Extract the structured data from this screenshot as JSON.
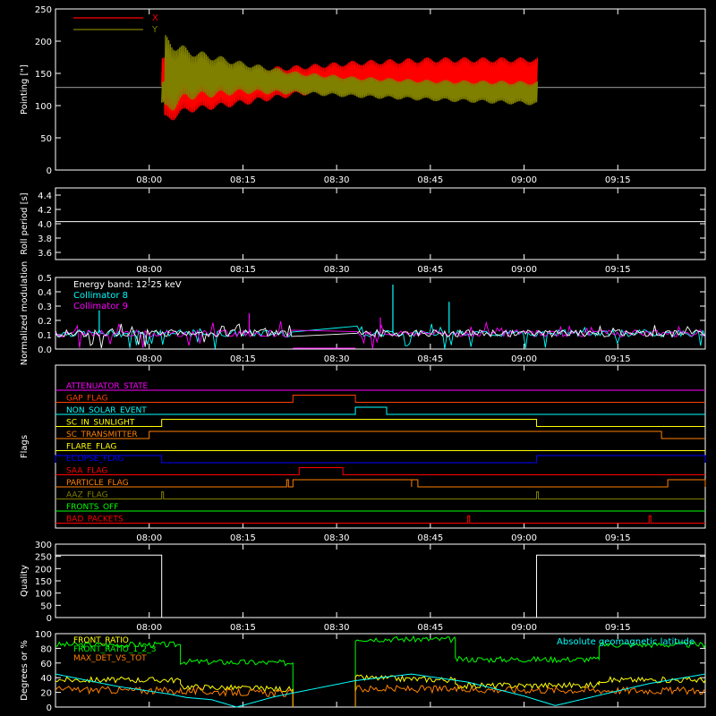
{
  "time_ticks": [
    "08:00",
    "08:15",
    "08:30",
    "08:45",
    "09:00",
    "09:15"
  ],
  "colors": {
    "background": "#000000",
    "axes": "#ffffff",
    "x_pointing": "#ff0000",
    "y_pointing": "#808000",
    "collimator_8": "#00ffff",
    "collimator_9": "#ff00ff",
    "front_ratio": "#ffff00",
    "front_ratio_1_2": "#00ff00",
    "max_det_vs_tot": "#ff8000",
    "abs_geomag_lat": "#00ffff"
  },
  "chart_data": [
    {
      "id": "pointing",
      "type": "line",
      "ylabel": "Pointing [\"]",
      "ylim": [
        0,
        250
      ],
      "yticks": [
        "0",
        "50",
        "100",
        "150",
        "200",
        "250"
      ],
      "series": [
        {
          "name": "X",
          "color": "#ff0000",
          "envelope": [
            [
              8.04,
              70,
              168
            ],
            [
              8.1,
              88,
              150
            ],
            [
              8.25,
              100,
              158
            ],
            [
              8.4,
              115,
              163
            ],
            [
              8.55,
              120,
              170
            ],
            [
              8.75,
              122,
              175
            ],
            [
              9.04,
              125,
              175
            ]
          ]
        },
        {
          "name": "Y",
          "color": "#808000",
          "envelope": [
            [
              8.04,
              82,
              210
            ],
            [
              8.1,
              108,
              190
            ],
            [
              8.25,
              118,
              168
            ],
            [
              8.4,
              117,
              152
            ],
            [
              8.55,
              112,
              145
            ],
            [
              8.75,
              107,
              140
            ],
            [
              9.04,
              100,
              138
            ]
          ]
        }
      ],
      "reference_line": 128,
      "data_start_time": "08:02",
      "data_end_time": "09:02"
    },
    {
      "id": "roll_period",
      "type": "line",
      "ylabel": "Roll period [s]",
      "ylim": [
        3.5,
        4.5
      ],
      "yticks": [
        "3.6",
        "3.8",
        "4.0",
        "4.2",
        "4.4"
      ],
      "value": 4.03
    },
    {
      "id": "modulation",
      "type": "line",
      "ylabel": "Normalized modulation",
      "ylim": [
        0,
        0.5
      ],
      "yticks": [
        "0.0",
        "0.1",
        "0.2",
        "0.3",
        "0.4",
        "0.5"
      ],
      "legend": {
        "title": "Energy band: 12-25 keV",
        "items": [
          "Collimator 8",
          "Collimator 9"
        ]
      },
      "gap": [
        "08:23",
        "08:33"
      ],
      "typical_value": 0.11,
      "spikes": [
        {
          "time": "07:52",
          "value": 0.27,
          "series": "Collimator 8"
        },
        {
          "time": "08:39",
          "value": 0.45,
          "series": "Collimator 8"
        },
        {
          "time": "08:48",
          "value": 0.33,
          "series": "Collimator 8"
        },
        {
          "time": "08:16",
          "value": 0.25,
          "series": "Collimator 9"
        },
        {
          "time": "08:37",
          "value": 0.22,
          "series": "Collimator 9"
        }
      ]
    },
    {
      "id": "flags",
      "type": "table",
      "ylabel": "Flags",
      "rows": [
        {
          "name": "ATTENUATOR_STATE",
          "color": "#ff00ff",
          "on": []
        },
        {
          "name": "GAP_FLAG",
          "color": "#ff4000",
          "on": [
            [
              "08:23",
              "08:33"
            ]
          ]
        },
        {
          "name": "NON_SOLAR_EVENT",
          "color": "#00ffff",
          "on": [
            [
              "08:33",
              "08:38"
            ]
          ]
        },
        {
          "name": "SC_IN_SUNLIGHT",
          "color": "#ffff00",
          "on": [
            [
              "08:02",
              "09:02"
            ]
          ]
        },
        {
          "name": "SC_TRANSMITTER",
          "color": "#ff8000",
          "on": [
            [
              "08:00",
              "09:22"
            ]
          ]
        },
        {
          "name": "FLARE_FLAG",
          "color": "#ffff00",
          "on": []
        },
        {
          "name": "ECLIPSE_FLAG",
          "color": "#0000ff",
          "on": [
            [
              "07:45",
              "08:02"
            ],
            [
              "09:02",
              "09:29"
            ]
          ]
        },
        {
          "name": "SAA_FLAG",
          "color": "#ff0000",
          "on": [
            [
              "08:24",
              "08:31"
            ]
          ]
        },
        {
          "name": "PARTICLE_FLAG",
          "color": "#ff8000",
          "on": [
            [
              "08:22",
              "08:22"
            ],
            [
              "08:23",
              "08:42"
            ],
            [
              "08:42",
              "08:43"
            ],
            [
              "09:23",
              "09:29"
            ]
          ]
        },
        {
          "name": "AAZ_FLAG",
          "color": "#808000",
          "on": [
            [
              "08:02",
              "08:02"
            ],
            [
              "09:02",
              "09:02"
            ]
          ]
        },
        {
          "name": "FRONTS_OFF",
          "color": "#00ff00",
          "on": []
        },
        {
          "name": "BAD_PACKETS",
          "color": "#ff0000",
          "on": [
            [
              "08:51",
              "08:51"
            ],
            [
              "09:20",
              "09:20"
            ]
          ]
        }
      ]
    },
    {
      "id": "quality",
      "type": "line",
      "ylabel": "Quality",
      "ylim": [
        0,
        300
      ],
      "yticks": [
        "0",
        "50",
        "100",
        "150",
        "200",
        "250",
        "300"
      ],
      "points": [
        [
          "07:45",
          255
        ],
        [
          "08:02",
          255
        ],
        [
          "08:02",
          0
        ],
        [
          "09:02",
          0
        ],
        [
          "09:02",
          255
        ],
        [
          "09:29",
          255
        ]
      ]
    },
    {
      "id": "degrees",
      "type": "line",
      "ylabel": "Degrees or %",
      "ylim": [
        0,
        100
      ],
      "yticks": [
        "0",
        "20",
        "40",
        "60",
        "80",
        "100"
      ],
      "legend": {
        "items": [
          "FRONT_RATIO",
          "FRONT_RATIO_1_2_3",
          "MAX_DET_VS_TOT"
        ],
        "right": "Absolute geomagnetic latitude"
      },
      "series": [
        {
          "name": "FRONT_RATIO_1_2_3",
          "color": "#00ff00",
          "segments": [
            [
              [
                "07:45",
                85
              ],
              [
                "08:05",
                85
              ],
              [
                "08:05",
                62
              ],
              [
                "08:23",
                60
              ],
              [
                "08:23",
                0
              ]
            ],
            [
              [
                "08:33",
                0
              ],
              [
                "08:33",
                93
              ],
              [
                "08:49",
                92
              ],
              [
                "08:49",
                65
              ],
              [
                "09:12",
                65
              ],
              [
                "09:12",
                85
              ],
              [
                "09:29",
                85
              ]
            ]
          ]
        },
        {
          "name": "FRONT_RATIO",
          "color": "#ffff00",
          "segments": [
            [
              [
                "07:45",
                37
              ],
              [
                "08:05",
                37
              ],
              [
                "08:05",
                28
              ],
              [
                "08:23",
                24
              ],
              [
                "08:23",
                0
              ]
            ],
            [
              [
                "08:33",
                0
              ],
              [
                "08:33",
                40
              ],
              [
                "08:49",
                37
              ],
              [
                "08:49",
                29
              ],
              [
                "09:12",
                30
              ],
              [
                "09:12",
                37
              ],
              [
                "09:29",
                37
              ]
            ]
          ]
        },
        {
          "name": "MAX_DET_VS_TOT",
          "color": "#ff8000",
          "segments": [
            [
              [
                "07:45",
                24
              ],
              [
                "08:05",
                22
              ],
              [
                "08:23",
                18
              ],
              [
                "08:23",
                0
              ]
            ],
            [
              [
                "08:33",
                0
              ],
              [
                "08:33",
                25
              ],
              [
                "09:29",
                22
              ]
            ]
          ]
        },
        {
          "name": "Absolute geomagnetic latitude",
          "color": "#00ffff",
          "points": [
            [
              "07:45",
              45
            ],
            [
              "07:55",
              28
            ],
            [
              "08:03",
              18
            ],
            [
              "08:06",
              13
            ],
            [
              "08:10",
              10
            ],
            [
              "08:14",
              0
            ],
            [
              "08:20",
              14
            ],
            [
              "08:33",
              36
            ],
            [
              "08:42",
              45
            ],
            [
              "08:51",
              34
            ],
            [
              "09:00",
              15
            ],
            [
              "09:05",
              2
            ],
            [
              "09:10",
              12
            ],
            [
              "09:20",
              32
            ],
            [
              "09:29",
              45
            ]
          ]
        }
      ]
    }
  ]
}
